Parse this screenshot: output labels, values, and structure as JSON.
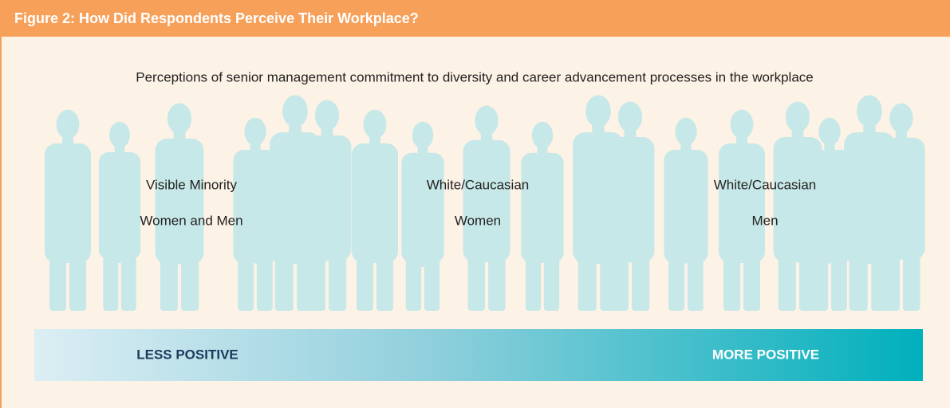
{
  "header": {
    "title": "Figure 2:  How Did Respondents Perceive Their Workplace?"
  },
  "subtitle": "Perceptions of senior management commitment to diversity and career advancement processes in the workplace",
  "groups": [
    {
      "line1": "Visible Minority",
      "line2": "Women and Men"
    },
    {
      "line1": "White/Caucasian",
      "line2": "Women"
    },
    {
      "line1": "White/Caucasian",
      "line2": "Men"
    }
  ],
  "scale": {
    "left": "LESS POSITIVE",
    "right": "MORE POSITIVE"
  }
}
